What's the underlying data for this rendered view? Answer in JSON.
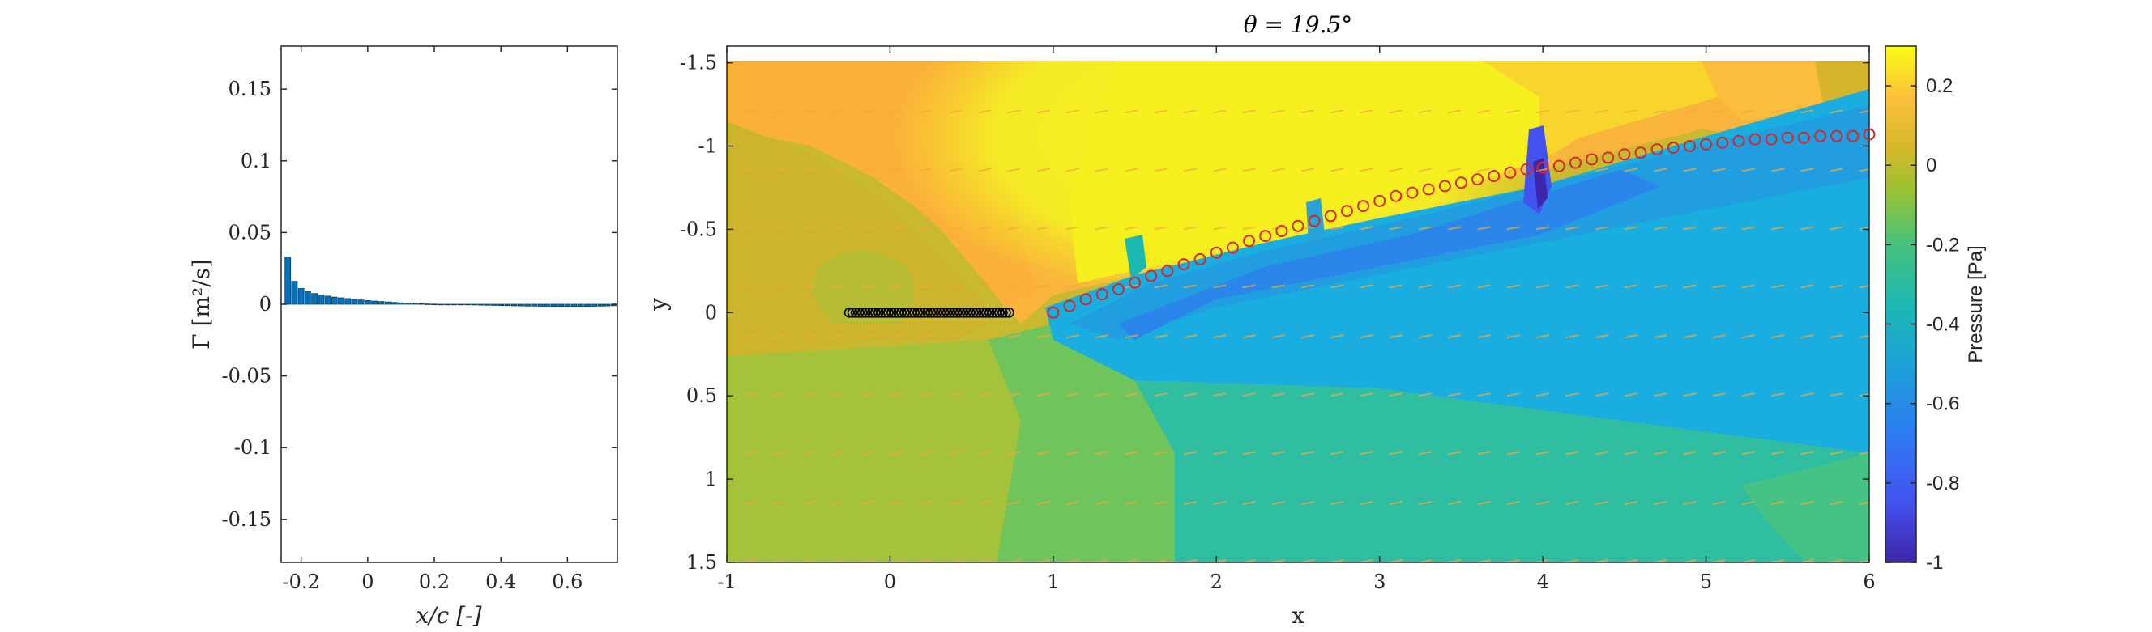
{
  "chart_data": [
    {
      "type": "bar",
      "xlabel": "x/c [-]",
      "ylabel": "Γ [m²/s]",
      "xlim": [
        -0.26,
        0.75
      ],
      "ylim": [
        -0.18,
        0.18
      ],
      "xticks": [
        -0.2,
        0,
        0.2,
        0.4,
        0.6
      ],
      "xtick_labels": [
        "-0.2",
        "0",
        "0.2",
        "0.4",
        "0.6"
      ],
      "yticks": [
        -0.15,
        -0.1,
        -0.05,
        0,
        0.05,
        0.1,
        0.15
      ],
      "ytick_labels": [
        "-0.15",
        "-0.1",
        "-0.05",
        "0",
        "0.05",
        "0.1",
        "0.15"
      ],
      "bar_color": "#0072BD",
      "x": [
        -0.24,
        -0.22,
        -0.2,
        -0.18,
        -0.16,
        -0.14,
        -0.12,
        -0.1,
        -0.08,
        -0.06,
        -0.04,
        -0.02,
        0.0,
        0.02,
        0.04,
        0.06,
        0.08,
        0.1,
        0.12,
        0.14,
        0.16,
        0.18,
        0.2,
        0.22,
        0.24,
        0.26,
        0.28,
        0.3,
        0.32,
        0.34,
        0.36,
        0.38,
        0.4,
        0.42,
        0.44,
        0.46,
        0.48,
        0.5,
        0.52,
        0.54,
        0.56,
        0.58,
        0.6,
        0.62,
        0.64,
        0.66,
        0.68,
        0.7,
        0.72,
        0.74
      ],
      "values": [
        0.033,
        0.016,
        0.011,
        0.009,
        0.0075,
        0.0065,
        0.0057,
        0.005,
        0.0045,
        0.004,
        0.0035,
        0.003,
        0.0026,
        0.0022,
        0.0019,
        0.0016,
        0.0013,
        0.001,
        0.0008,
        0.0006,
        0.0004,
        0.0002,
        0.0001,
        0.0,
        -0.0001,
        -0.0002,
        -0.0003,
        -0.0004,
        -0.0005,
        -0.0006,
        -0.0007,
        -0.0008,
        -0.0009,
        -0.001,
        -0.0011,
        -0.0012,
        -0.0013,
        -0.0013,
        -0.0014,
        -0.0014,
        -0.0015,
        -0.0015,
        -0.0015,
        -0.0015,
        -0.0015,
        -0.0015,
        -0.0014,
        -0.0013,
        -0.0012,
        -0.001
      ]
    },
    {
      "type": "heatmap",
      "title": "θ = 19.5°",
      "xlabel": "x",
      "ylabel": "y",
      "xlim": [
        -1,
        6
      ],
      "ylim": [
        -1.6,
        1.5
      ],
      "y_reversed": true,
      "xticks": [
        -1,
        0,
        1,
        2,
        3,
        4,
        5,
        6
      ],
      "xtick_labels": [
        "-1",
        "0",
        "1",
        "2",
        "3",
        "4",
        "5",
        "6"
      ],
      "yticks": [
        -1.5,
        -1,
        -0.5,
        0,
        0.5,
        1,
        1.5
      ],
      "ytick_labels": [
        "-1.5",
        "-1",
        "-0.5",
        "0",
        "0.5",
        "1",
        "1.5"
      ],
      "colorbar": {
        "label": "Pressure [Pa]",
        "range": [
          -1,
          0.3
        ],
        "ticks": [
          0.2,
          0,
          -0.2,
          -0.4,
          -0.6,
          -0.8,
          -1
        ],
        "tick_labels": [
          "0.2",
          "0",
          "-0.2",
          "-0.4",
          "-0.6",
          "-0.8",
          "-1"
        ]
      },
      "airfoil_points": {
        "color": "#000000",
        "x": [
          -0.25,
          -0.23,
          -0.21,
          -0.19,
          -0.17,
          -0.15,
          -0.13,
          -0.11,
          -0.09,
          -0.07,
          -0.05,
          -0.03,
          -0.01,
          0.01,
          0.03,
          0.05,
          0.07,
          0.09,
          0.11,
          0.13,
          0.15,
          0.17,
          0.19,
          0.21,
          0.23,
          0.25,
          0.27,
          0.29,
          0.31,
          0.33,
          0.35,
          0.37,
          0.39,
          0.41,
          0.43,
          0.45,
          0.47,
          0.49,
          0.51,
          0.53,
          0.55,
          0.57,
          0.59,
          0.61,
          0.63,
          0.65,
          0.67,
          0.69,
          0.71,
          0.73
        ],
        "y": 0
      },
      "wake_points": {
        "color": "#d62728",
        "x": [
          1.0,
          1.1,
          1.2,
          1.3,
          1.4,
          1.5,
          1.6,
          1.7,
          1.8,
          1.9,
          2.0,
          2.1,
          2.2,
          2.3,
          2.4,
          2.5,
          2.6,
          2.7,
          2.8,
          2.9,
          3.0,
          3.1,
          3.2,
          3.3,
          3.4,
          3.5,
          3.6,
          3.7,
          3.8,
          3.9,
          4.0,
          4.1,
          4.2,
          4.3,
          4.4,
          4.5,
          4.6,
          4.7,
          4.8,
          4.9,
          5.0,
          5.1,
          5.2,
          5.3,
          5.4,
          5.5,
          5.6,
          5.7,
          5.8,
          5.9,
          6.0
        ],
        "y": [
          0.0,
          -0.04,
          -0.08,
          -0.11,
          -0.14,
          -0.18,
          -0.22,
          -0.25,
          -0.29,
          -0.32,
          -0.36,
          -0.39,
          -0.43,
          -0.46,
          -0.49,
          -0.52,
          -0.55,
          -0.58,
          -0.61,
          -0.64,
          -0.67,
          -0.7,
          -0.72,
          -0.74,
          -0.76,
          -0.78,
          -0.8,
          -0.82,
          -0.84,
          -0.86,
          -0.87,
          -0.88,
          -0.9,
          -0.92,
          -0.93,
          -0.95,
          -0.96,
          -0.98,
          -0.99,
          -1.0,
          -1.01,
          -1.02,
          -1.03,
          -1.04,
          -1.04,
          -1.05,
          -1.05,
          -1.06,
          -1.06,
          -1.06,
          -1.07
        ]
      }
    }
  ]
}
